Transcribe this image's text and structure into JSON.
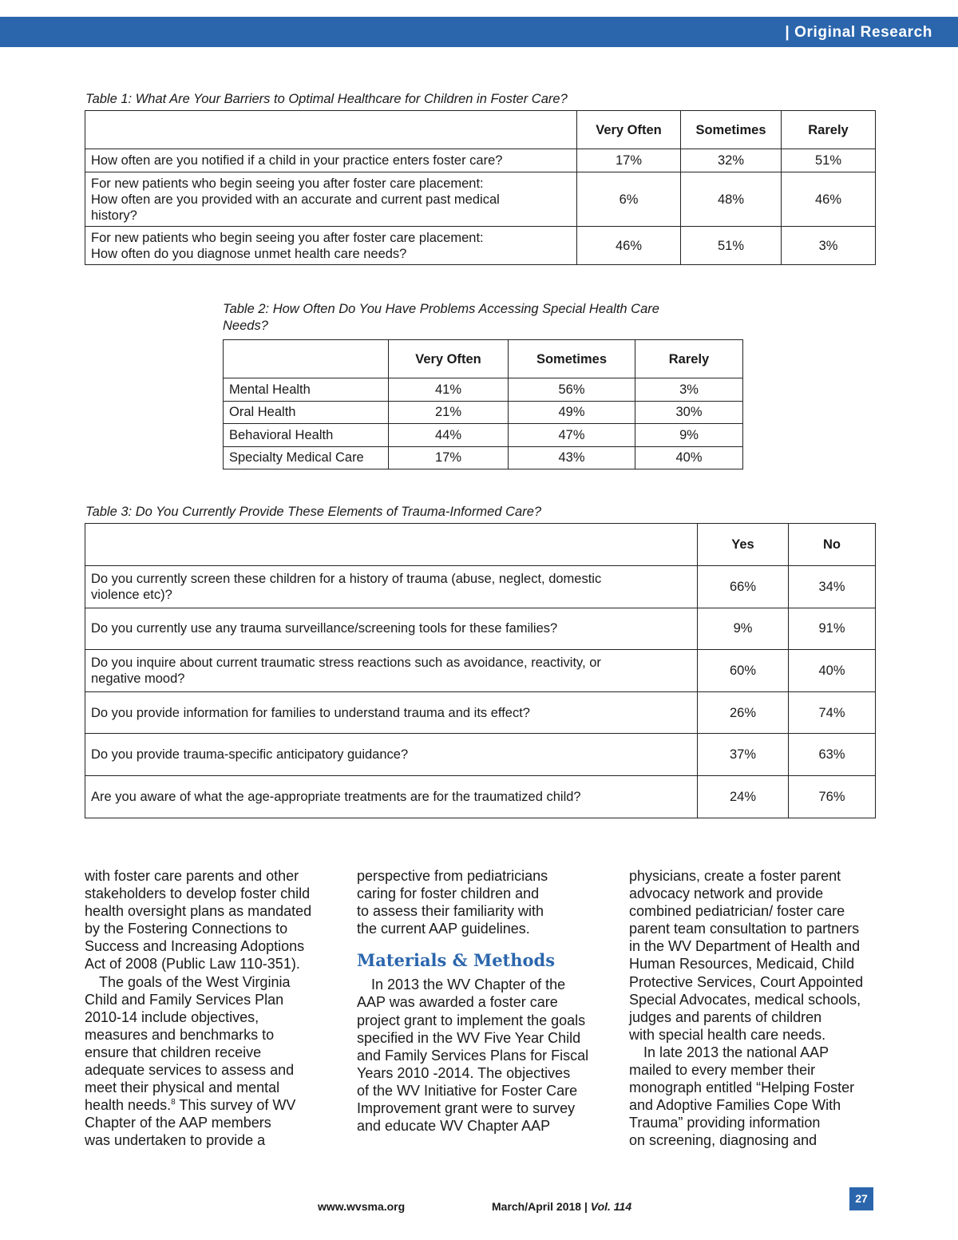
{
  "header": {
    "section": "| Original Research"
  },
  "table1": {
    "caption": "Table 1: What Are Your Barriers to Optimal Healthcare for Children in Foster Care?",
    "headers": [
      "",
      "Very Often",
      "Sometimes",
      "Rarely"
    ],
    "rows": [
      {
        "q": [
          "How often are you notified if a child in your practice enters foster care?"
        ],
        "v": [
          "17%",
          "32%",
          "51%"
        ]
      },
      {
        "q": [
          "For new patients who begin seeing you after foster care placement:",
          "How often are you provided with an accurate and current past medical",
          "history?"
        ],
        "v": [
          "6%",
          "48%",
          "46%"
        ]
      },
      {
        "q": [
          "For new patients who begin seeing you after foster care placement:",
          "How often do you diagnose unmet health care needs?"
        ],
        "v": [
          "46%",
          "51%",
          "3%"
        ]
      }
    ]
  },
  "table2": {
    "caption": [
      "Table 2: How Often Do You Have Problems Accessing Special Health Care",
      "Needs?"
    ],
    "headers": [
      "",
      "Very Often",
      "Sometimes",
      "Rarely"
    ],
    "rows": [
      {
        "q": "Mental Health",
        "v": [
          "41%",
          "56%",
          "3%"
        ]
      },
      {
        "q": "Oral Health",
        "v": [
          "21%",
          "49%",
          "30%"
        ]
      },
      {
        "q": "Behavioral Health",
        "v": [
          "44%",
          "47%",
          "9%"
        ]
      },
      {
        "q": "Specialty Medical Care",
        "v": [
          "17%",
          "43%",
          "40%"
        ]
      }
    ]
  },
  "table3": {
    "caption": "Table 3: Do You Currently Provide These Elements of Trauma-Informed Care?",
    "headers": [
      "",
      "Yes",
      "No"
    ],
    "rows": [
      {
        "q": [
          "Do you currently screen these children for a history of trauma (abuse, neglect, domestic",
          "violence etc)?"
        ],
        "v": [
          "66%",
          "34%"
        ]
      },
      {
        "q": [
          "Do you currently use any trauma surveillance/screening tools for these families?"
        ],
        "v": [
          "9%",
          "91%"
        ]
      },
      {
        "q": [
          "Do you inquire about current traumatic stress reactions such as avoidance, reactivity, or",
          "negative mood?"
        ],
        "v": [
          "60%",
          "40%"
        ]
      },
      {
        "q": [
          "Do you provide information for families to understand trauma and its effect?"
        ],
        "v": [
          "26%",
          "74%"
        ]
      },
      {
        "q": [
          "Do you provide trauma-specific anticipatory guidance?"
        ],
        "v": [
          "37%",
          "63%"
        ]
      },
      {
        "q": [
          "Are you aware of what the age-appropriate treatments are for the traumatized child?"
        ],
        "v": [
          "24%",
          "76%"
        ]
      }
    ]
  },
  "body": {
    "col1": [
      "with foster care parents and other",
      "stakeholders to develop foster child",
      "health oversight plans as mandated",
      "by the Fostering Connections to",
      "Success and Increasing Adoptions",
      "Act of 2008 (Public Law 110-351).",
      ">The goals of the West Virginia",
      "Child and Family Services Plan",
      "2010-14 include objectives,",
      "measures and benchmarks to",
      "ensure that children receive",
      "adequate services to assess and",
      "meet their physical and mental",
      "health needs.^8^ This survey of WV",
      "Chapter of the AAP members",
      "was undertaken to provide a"
    ],
    "col2a": [
      "perspective from pediatricians",
      "caring for foster children and",
      "to assess their familiarity with",
      "the current AAP guidelines."
    ],
    "heading": "Materials & Methods",
    "col2b": [
      ">In 2013 the WV Chapter of the",
      "AAP was awarded a foster care",
      "project grant to implement the goals",
      "specified in the WV Five Year Child",
      "and Family Services Plans for Fiscal",
      "Years 2010 -2014. The objectives",
      "of the WV Initiative for Foster Care",
      "Improvement grant were to survey",
      "and educate WV Chapter AAP"
    ],
    "col3": [
      "physicians, create a foster parent",
      "advocacy network and provide",
      "combined pediatrician/ foster care",
      "parent team consultation to partners",
      "in the WV Department of Health and",
      "Human Resources, Medicaid, Child",
      "Protective Services, Court Appointed",
      "Special Advocates, medical schools,",
      "judges and parents of children",
      "with special health care needs.",
      ">In late 2013 the national AAP",
      "mailed to every member their",
      "monograph entitled “Helping Foster",
      "and Adoptive Families Cope With",
      "Trauma” providing information",
      "on screening, diagnosing and"
    ]
  },
  "footer": {
    "site": "www.wvsma.org",
    "issue": "March/April 2018 | ",
    "vol": "Vol. 114",
    "page": "27"
  },
  "colors": {
    "accent": "#2b66ad"
  }
}
